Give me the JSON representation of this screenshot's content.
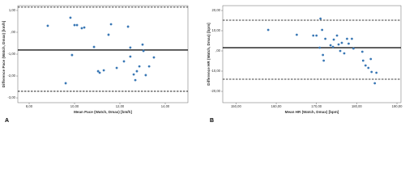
{
  "chart_data": [
    {
      "type": "scatter",
      "panel_label": "A",
      "x_label": "Mean Pace (Watch, Dmax) [km/h]",
      "y_label": "Difference Pace (Watch, Dmax) [km/h]",
      "xlim": [
        7.5,
        15.0
      ],
      "ylim": [
        -3.22,
        1.22
      ],
      "xticks": [
        {
          "value": 8,
          "label": "8,00"
        },
        {
          "value": 10,
          "label": "10,00"
        },
        {
          "value": 12,
          "label": "12,00"
        },
        {
          "value": 14,
          "label": "14,00"
        }
      ],
      "yticks": [
        {
          "value": 1,
          "label": "1,00"
        },
        {
          "value": 0,
          "label": ",00"
        },
        {
          "value": -1,
          "label": "-1,00"
        },
        {
          "value": -2,
          "label": "-2,00"
        },
        {
          "value": -3,
          "label": "-3,00"
        }
      ],
      "grid": false,
      "color": "#3a78b5",
      "reference_lines": [
        {
          "value": 1.15,
          "style": "dashed"
        },
        {
          "value": -0.81,
          "style": "solid"
        },
        {
          "value": -2.7,
          "style": "dashed"
        }
      ],
      "x": [
        8.82,
        9.61,
        9.82,
        9.89,
        10.0,
        10.11,
        10.32,
        10.43,
        10.86,
        11.04,
        11.11,
        11.29,
        11.5,
        11.61,
        11.86,
        12.18,
        12.36,
        12.46,
        12.46,
        12.61,
        12.68,
        12.75,
        12.86,
        13.0,
        13.04,
        13.14,
        13.29,
        13.5
      ],
      "values": [
        0.3,
        -2.33,
        0.67,
        -1.04,
        0.33,
        0.33,
        0.19,
        0.22,
        -0.67,
        -1.78,
        -1.85,
        -1.74,
        -0.11,
        0.37,
        -1.63,
        -1.33,
        0.26,
        -1.11,
        -0.7,
        -1.93,
        -2.19,
        -1.78,
        -1.56,
        -0.56,
        -0.85,
        -1.96,
        -1.56,
        -1.15
      ]
    },
    {
      "type": "scatter",
      "panel_label": "B",
      "x_label": "Mean HR (Watch, Dmax) [bpm]",
      "y_label": "Difference HR (Watch, Dmax) [bpm]",
      "xlim": [
        146.7,
        191.0
      ],
      "ylim": [
        -25.6,
        22.4
      ],
      "xticks": [
        {
          "value": 150,
          "label": "150,00"
        },
        {
          "value": 160,
          "label": "160,00"
        },
        {
          "value": 170,
          "label": "170,00"
        },
        {
          "value": 180,
          "label": "180,00"
        },
        {
          "value": 190,
          "label": "190,00"
        }
      ],
      "yticks": [
        {
          "value": 20,
          "label": "20,00"
        },
        {
          "value": 10,
          "label": "10,00"
        },
        {
          "value": 0,
          "label": ",00"
        },
        {
          "value": -10,
          "label": "-10,00"
        },
        {
          "value": -20,
          "label": "-20,00"
        }
      ],
      "grid": false,
      "color": "#3a78b5",
      "reference_lines": [
        {
          "value": 15.2,
          "style": "dashed"
        },
        {
          "value": 1.6,
          "style": "solid"
        },
        {
          "value": -14.0,
          "style": "dashed"
        }
      ],
      "x": [
        158.0,
        165.1,
        169.2,
        170.0,
        170.8,
        171.0,
        171.4,
        171.6,
        171.8,
        172.2,
        173.5,
        174.1,
        174.3,
        175.1,
        175.5,
        175.9,
        176.3,
        176.9,
        177.6,
        178.0,
        178.8,
        179.2,
        181.4,
        181.6,
        182.2,
        182.9,
        183.5,
        183.7,
        184.5,
        184.9
      ],
      "values": [
        10.4,
        8.0,
        7.6,
        7.6,
        1.6,
        16.0,
        10.4,
        -2.0,
        -4.8,
        6.0,
        2.8,
        2.0,
        5.6,
        7.6,
        3.2,
        0.0,
        4.0,
        -1.2,
        6.0,
        3.6,
        6.0,
        1.2,
        -0.4,
        -4.8,
        -7.2,
        -8.4,
        -4.0,
        -10.4,
        -16.0,
        -10.8
      ]
    }
  ]
}
